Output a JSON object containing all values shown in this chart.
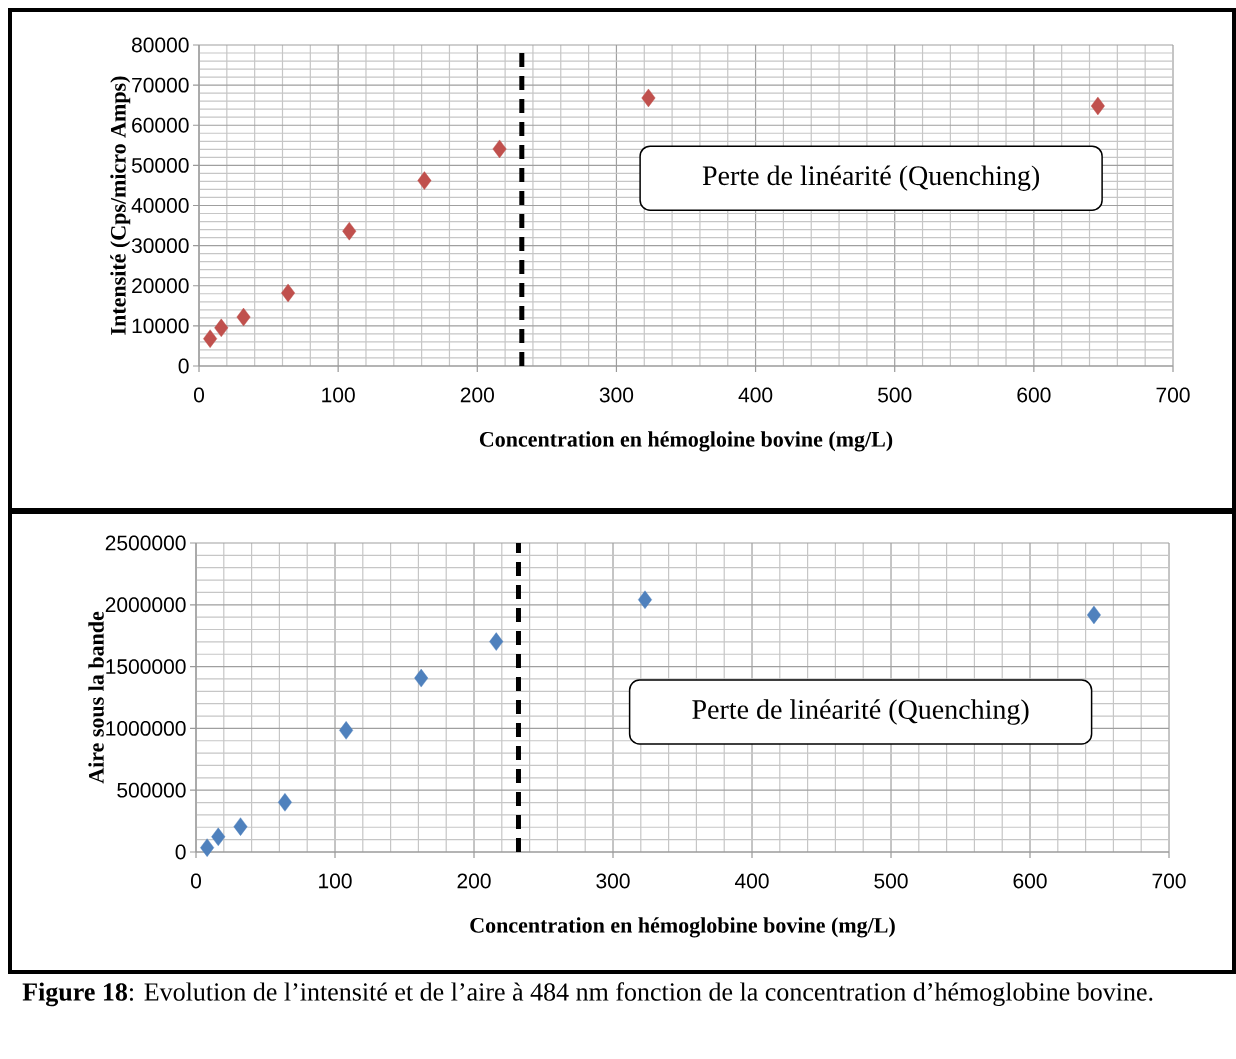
{
  "chart_data": [
    {
      "type": "scatter",
      "xlabel": "Concentration en hémogloine  bovine (mg/L)",
      "ylabel": "Intensité (Cps/micro Amps)",
      "x": [
        8,
        16,
        32,
        64,
        108,
        162,
        216,
        323,
        646
      ],
      "values": [
        6800,
        9500,
        12200,
        18200,
        33600,
        46200,
        54100,
        66800,
        64800
      ],
      "color": "#c0504d",
      "marker": "diamond",
      "grid": true,
      "xlim": [
        0,
        700
      ],
      "xticks": [
        0,
        100,
        200,
        300,
        400,
        500,
        600,
        700
      ],
      "ylim": [
        0,
        80000
      ],
      "yticks": [
        0,
        10000,
        20000,
        30000,
        40000,
        50000,
        60000,
        70000,
        80000
      ],
      "ref_lines": [
        {
          "axis": "x",
          "value": 232,
          "line_style": "dashed",
          "color": "#000000"
        }
      ],
      "annotations": [
        "Perte de linéarité (Quenching)"
      ]
    },
    {
      "type": "scatter",
      "xlabel": "Concentration en hémoglobine bovine (mg/L)",
      "ylabel": "Aire sous la bande",
      "x": [
        8,
        16,
        32,
        64,
        108,
        162,
        216,
        323,
        646
      ],
      "values": [
        35000,
        123000,
        205000,
        402000,
        984000,
        1407000,
        1702000,
        2041000,
        1918000
      ],
      "color": "#4f81bd",
      "marker": "diamond",
      "grid": true,
      "xlim": [
        0,
        700
      ],
      "xticks": [
        0,
        100,
        200,
        300,
        400,
        500,
        600,
        700
      ],
      "ylim": [
        0,
        2500000
      ],
      "yticks": [
        0,
        500000,
        1000000,
        1500000,
        2000000,
        2500000
      ],
      "ref_lines": [
        {
          "axis": "x",
          "value": 232,
          "line_style": "dashed",
          "color": "#000000"
        }
      ],
      "annotations": [
        "Perte de linéarité (Quenching)",
        "**Figure 18**: Evolution de l’intensité  et de l’aire à 484 nm fonction de la concentration d’hémoglobine bovine."
      ]
    }
  ]
}
